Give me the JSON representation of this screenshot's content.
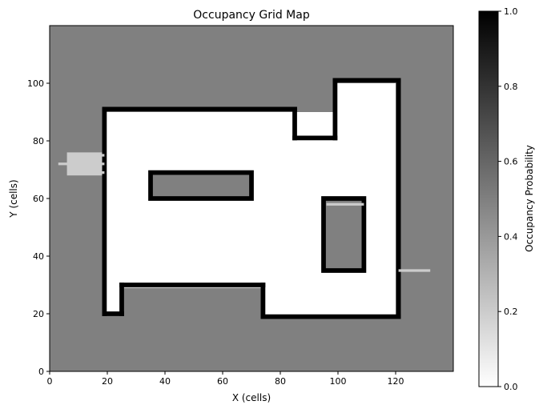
{
  "chart_data": {
    "type": "heatmap",
    "title": "Occupancy Grid Map",
    "xlabel": "X (cells)",
    "ylabel": "Y (cells)",
    "xlim": [
      0,
      140
    ],
    "ylim": [
      0,
      120
    ],
    "x_ticks": [
      0,
      20,
      40,
      60,
      80,
      100,
      120
    ],
    "y_ticks": [
      0,
      20,
      40,
      60,
      80,
      100
    ],
    "unknown_probability": 0.5,
    "grid": false,
    "colormap": "gray_r",
    "colorbar": {
      "label": "Occupancy Probability",
      "range": [
        0.0,
        1.0
      ],
      "ticks": [
        "0.0",
        "0.2",
        "0.4",
        "0.6",
        "0.8",
        "1.0"
      ],
      "placement": "right"
    },
    "free_regions": [
      {
        "x": [
          19,
          120
        ],
        "y": [
          29,
          90
        ]
      },
      {
        "x": [
          99,
          120
        ],
        "y": [
          89,
          100
        ]
      },
      {
        "x": [
          19,
          25
        ],
        "y": [
          20,
          30
        ]
      },
      {
        "x": [
          74,
          120
        ],
        "y": [
          19,
          30
        ]
      },
      {
        "x": [
          6,
          19
        ],
        "y": [
          68,
          76
        ],
        "probability": 0.2
      }
    ],
    "obstacle_regions": [
      {
        "x": [
          35,
          70
        ],
        "y": [
          60,
          69
        ],
        "interior_probability": 0.5
      },
      {
        "x": [
          95,
          109
        ],
        "y": [
          35,
          60
        ],
        "interior_probability": 0.5
      }
    ],
    "walls": [
      {
        "points": [
          [
            19,
            20
          ],
          [
            19,
            91
          ]
        ]
      },
      {
        "points": [
          [
            19,
            91
          ],
          [
            85,
            91
          ]
        ]
      },
      {
        "points": [
          [
            85,
            91
          ],
          [
            85,
            81
          ]
        ]
      },
      {
        "points": [
          [
            85,
            81
          ],
          [
            99,
            81
          ]
        ]
      },
      {
        "points": [
          [
            99,
            81
          ],
          [
            99,
            101
          ]
        ]
      },
      {
        "points": [
          [
            99,
            101
          ],
          [
            121,
            101
          ]
        ]
      },
      {
        "points": [
          [
            121,
            101
          ],
          [
            121,
            19
          ]
        ]
      },
      {
        "points": [
          [
            121,
            19
          ],
          [
            74,
            19
          ]
        ]
      },
      {
        "points": [
          [
            74,
            19
          ],
          [
            74,
            30
          ]
        ]
      },
      {
        "points": [
          [
            74,
            30
          ],
          [
            25,
            30
          ]
        ]
      },
      {
        "points": [
          [
            25,
            30
          ],
          [
            25,
            20
          ]
        ]
      },
      {
        "points": [
          [
            25,
            20
          ],
          [
            19,
            20
          ]
        ]
      }
    ],
    "sensor_rays": [
      {
        "x": [
          121,
          132
        ],
        "y": [
          35,
          35
        ],
        "probability": 0.2
      },
      {
        "x": [
          3,
          19
        ],
        "y": [
          72,
          72
        ],
        "probability": 0.2
      },
      {
        "x": [
          9,
          19
        ],
        "y": [
          75,
          75
        ],
        "probability": 0.2
      },
      {
        "x": [
          7,
          19
        ],
        "y": [
          69,
          69
        ],
        "probability": 0.2
      },
      {
        "x": [
          96,
          109
        ],
        "y": [
          58,
          58
        ],
        "probability": 0.2
      }
    ]
  }
}
